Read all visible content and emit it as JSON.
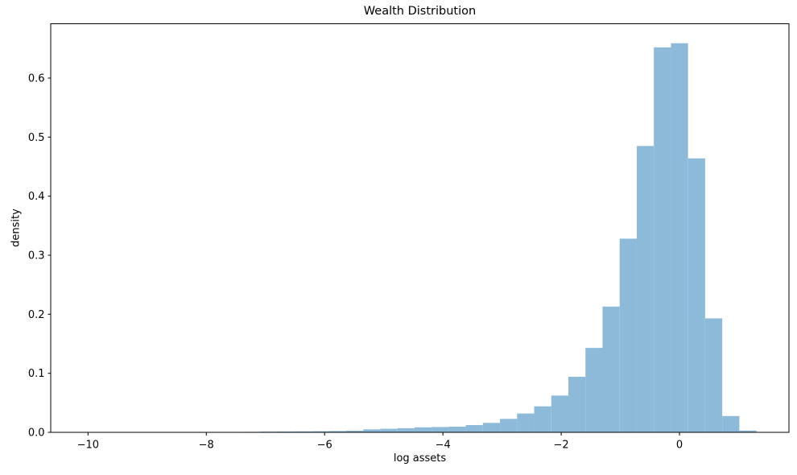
{
  "figure": {
    "background": "#ffffff"
  },
  "chart_data": {
    "type": "bar",
    "subtype": "histogram",
    "title": "Wealth Distribution",
    "xlabel": "log assets",
    "ylabel": "density",
    "legend": null,
    "grid": false,
    "bar_color": "#8dbad9",
    "axis_color": "#000000",
    "xlim": [
      -10.63,
      1.85
    ],
    "ylim": [
      0,
      0.692
    ],
    "x_ticks": [
      -10,
      -8,
      -6,
      -4,
      -2,
      0
    ],
    "x_tick_labels": [
      "−10",
      "−8",
      "−6",
      "−4",
      "−2",
      "0"
    ],
    "y_ticks": [
      0.0,
      0.1,
      0.2,
      0.3,
      0.4,
      0.5,
      0.6
    ],
    "y_tick_labels": [
      "0.0",
      "0.1",
      "0.2",
      "0.3",
      "0.4",
      "0.5",
      "0.6"
    ],
    "bin_edges": [
      -7.37,
      -7.081,
      -6.792,
      -6.503,
      -6.214,
      -5.925,
      -5.636,
      -5.347,
      -5.058,
      -4.769,
      -4.48,
      -4.191,
      -3.902,
      -3.613,
      -3.324,
      -3.035,
      -2.746,
      -2.457,
      -2.168,
      -1.879,
      -1.59,
      -1.301,
      -1.012,
      -0.723,
      -0.434,
      -0.145,
      0.144,
      0.433,
      0.722,
      1.011,
      1.3
    ],
    "densities": [
      0.0008,
      0.0012,
      0.0014,
      0.0016,
      0.0018,
      0.0022,
      0.0027,
      0.005,
      0.006,
      0.007,
      0.0085,
      0.009,
      0.0095,
      0.0123,
      0.016,
      0.0228,
      0.0319,
      0.044,
      0.0623,
      0.0941,
      0.143,
      0.213,
      0.328,
      0.485,
      0.652,
      0.659,
      0.464,
      0.193,
      0.0276,
      0.003
    ]
  }
}
